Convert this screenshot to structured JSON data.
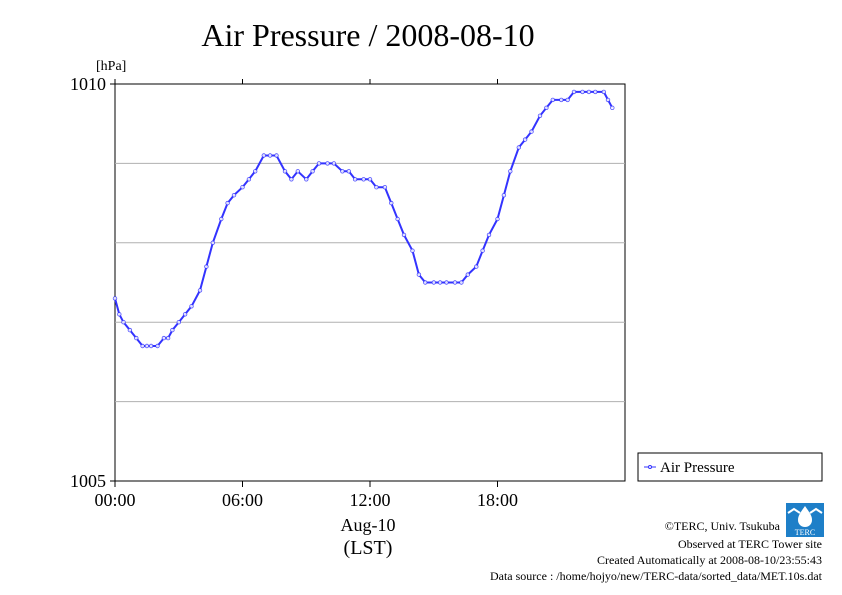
{
  "chart_data": {
    "type": "line",
    "title": "Air Pressure / 2008-08-10",
    "ylabel": "[hPa]",
    "xlabel": "Aug-10",
    "xlabel2": "(LST)",
    "ylim": [
      1005,
      1010
    ],
    "xlim": [
      0,
      24
    ],
    "x_ticks": [
      {
        "v": 0,
        "label": "00:00"
      },
      {
        "v": 6,
        "label": "06:00"
      },
      {
        "v": 12,
        "label": "12:00"
      },
      {
        "v": 18,
        "label": "18:00"
      }
    ],
    "y_ticks": [
      {
        "v": 1010,
        "label": "1010"
      },
      {
        "v": 1005,
        "label": "1005"
      }
    ],
    "grid_y": [
      1006,
      1007,
      1008,
      1009
    ],
    "grid": true,
    "legend_position": "right",
    "series": [
      {
        "name": "Air Pressure",
        "color": "#3333ff",
        "x": [
          0,
          0.2,
          0.4,
          0.7,
          1.0,
          1.3,
          1.5,
          1.7,
          2.0,
          2.3,
          2.5,
          2.7,
          3.0,
          3.3,
          3.6,
          4.0,
          4.3,
          4.6,
          5.0,
          5.3,
          5.6,
          6.0,
          6.3,
          6.6,
          7.0,
          7.3,
          7.6,
          8.0,
          8.3,
          8.6,
          9.0,
          9.3,
          9.6,
          10.0,
          10.3,
          10.7,
          11.0,
          11.3,
          11.7,
          12.0,
          12.3,
          12.7,
          13.0,
          13.3,
          13.6,
          14.0,
          14.3,
          14.6,
          15.0,
          15.3,
          15.6,
          16.0,
          16.3,
          16.6,
          17.0,
          17.3,
          17.6,
          18.0,
          18.3,
          18.6,
          19.0,
          19.3,
          19.6,
          20.0,
          20.3,
          20.6,
          21.0,
          21.3,
          21.6,
          22.0,
          22.3,
          22.6,
          23.0,
          23.2,
          23.4
        ],
        "values": [
          1007.3,
          1007.1,
          1007.0,
          1006.9,
          1006.8,
          1006.7,
          1006.7,
          1006.7,
          1006.7,
          1006.8,
          1006.8,
          1006.9,
          1007.0,
          1007.1,
          1007.2,
          1007.4,
          1007.7,
          1008.0,
          1008.3,
          1008.5,
          1008.6,
          1008.7,
          1008.8,
          1008.9,
          1009.1,
          1009.1,
          1009.1,
          1008.9,
          1008.8,
          1008.9,
          1008.8,
          1008.9,
          1009.0,
          1009.0,
          1009.0,
          1008.9,
          1008.9,
          1008.8,
          1008.8,
          1008.8,
          1008.7,
          1008.7,
          1008.5,
          1008.3,
          1008.1,
          1007.9,
          1007.6,
          1007.5,
          1007.5,
          1007.5,
          1007.5,
          1007.5,
          1007.5,
          1007.6,
          1007.7,
          1007.9,
          1008.1,
          1008.3,
          1008.6,
          1008.9,
          1009.2,
          1009.3,
          1009.4,
          1009.6,
          1009.7,
          1009.8,
          1009.8,
          1009.8,
          1009.9,
          1009.9,
          1009.9,
          1009.9,
          1009.9,
          1009.8,
          1009.7
        ]
      }
    ]
  },
  "footer": {
    "copyright": "©TERC, Univ. Tsukuba",
    "observed": "Observed at TERC Tower site",
    "created": "Created Automatically at 2008-08-10/23:55:43",
    "source": "Data source : /home/hojyo/new/TERC-data/sorted_data/MET.10s.dat"
  },
  "logo_text": "TERC"
}
